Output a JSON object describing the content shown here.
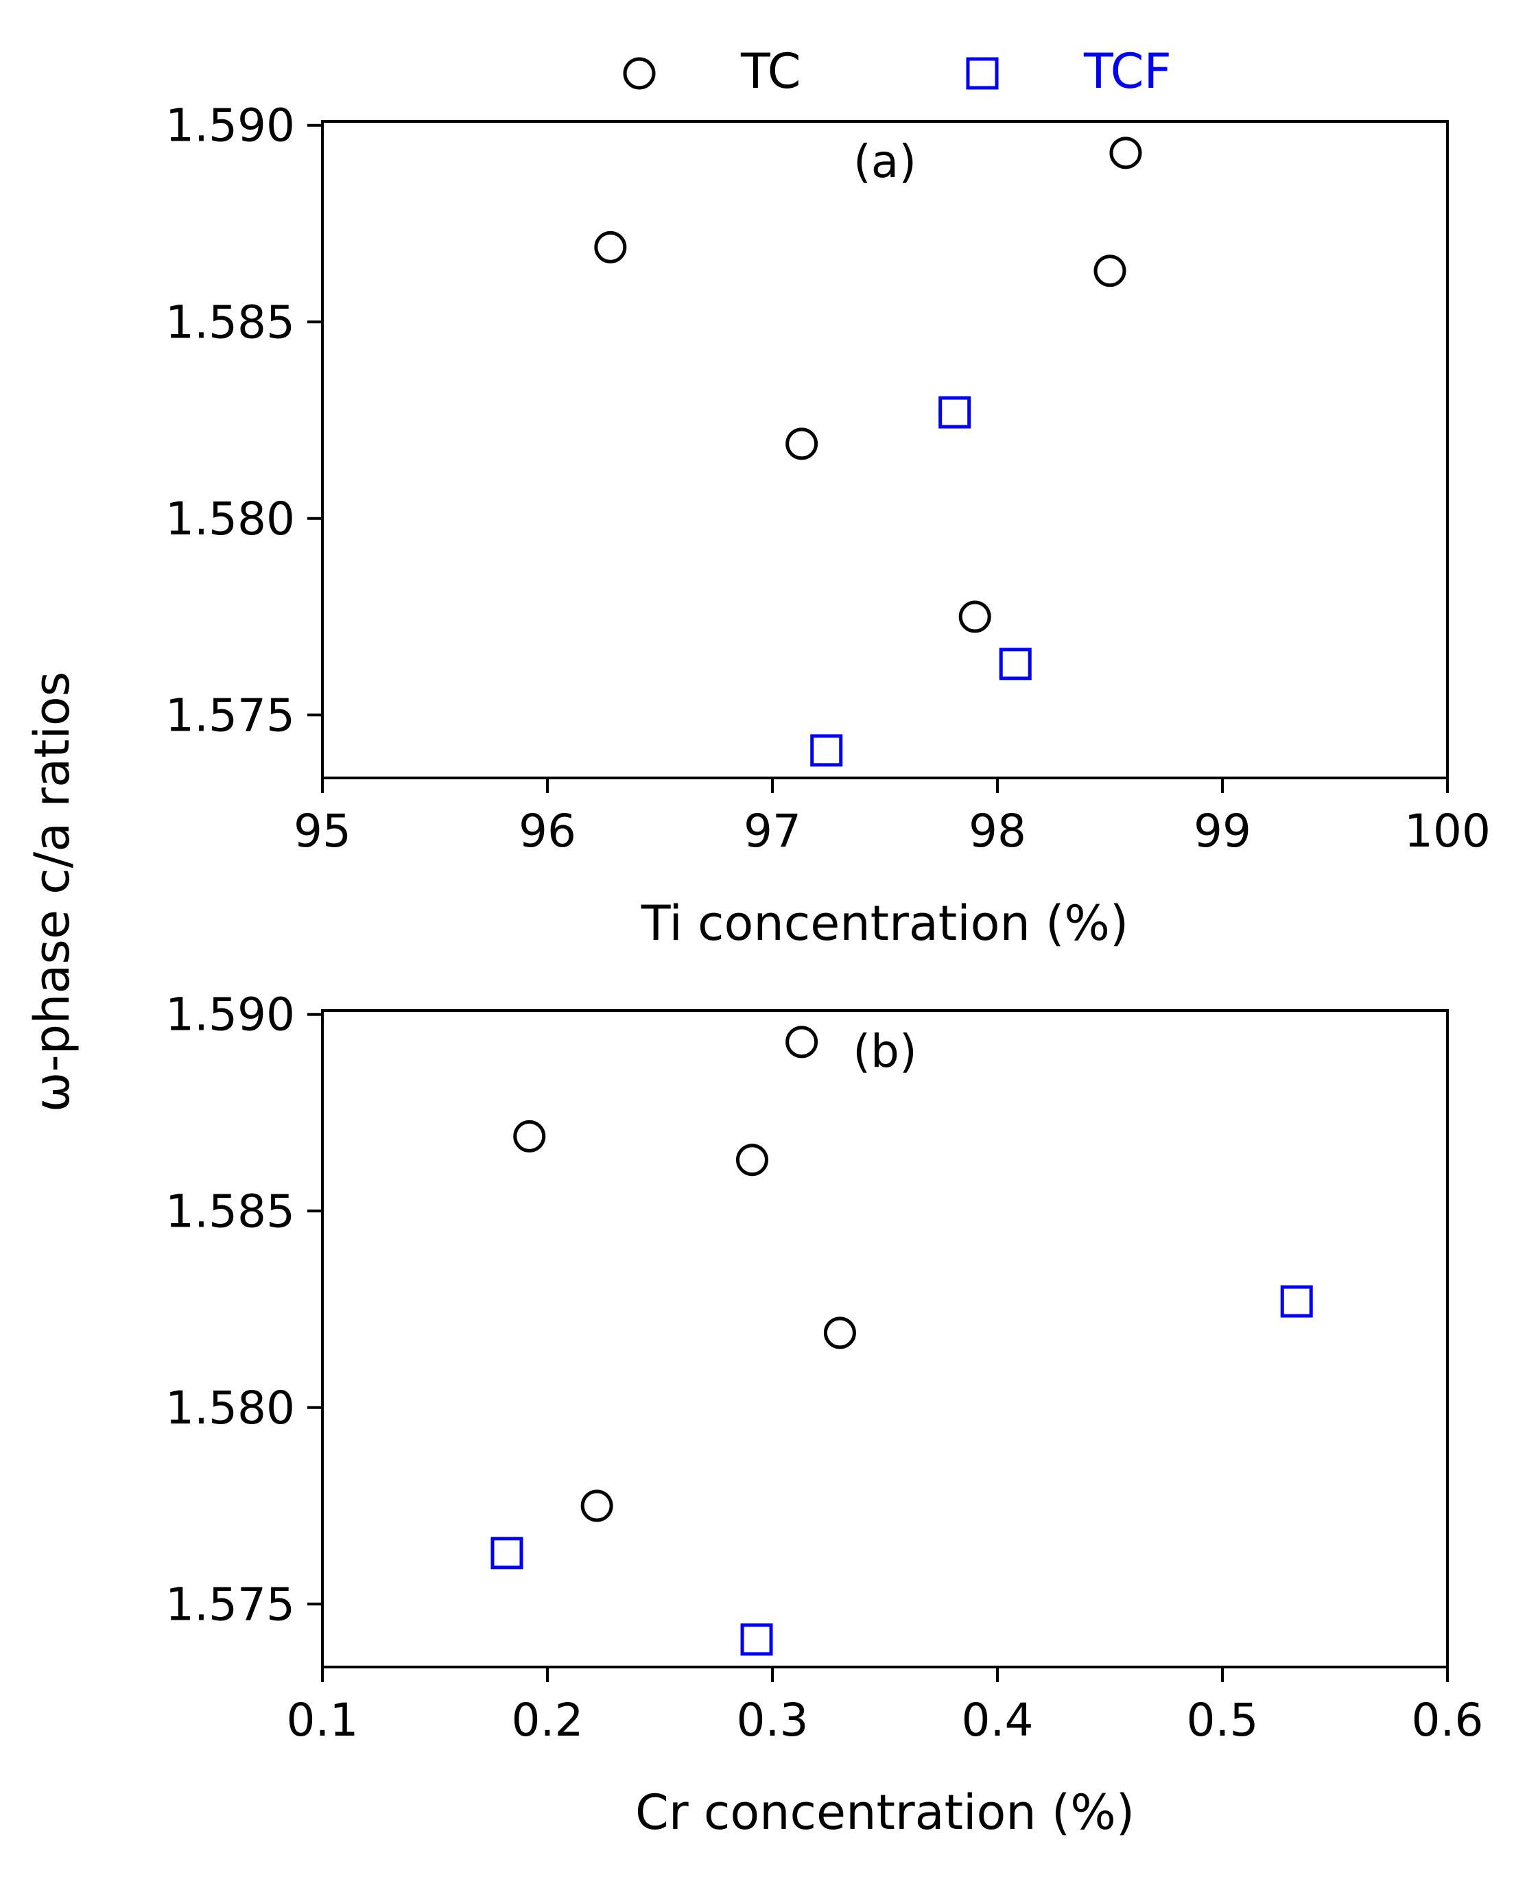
{
  "legend": {
    "entries": [
      {
        "label": "TC",
        "marker": "circle",
        "color": "#000000"
      },
      {
        "label": "TCF",
        "marker": "square",
        "color": "#0000ff"
      }
    ],
    "placement": "top-center"
  },
  "shared_ylabel": "ω-phase c/a ratios",
  "chart_data": [
    {
      "type": "scatter",
      "panel_label": "(a)",
      "xlabel": "Ti concentration (%)",
      "ylabel": "ω-phase c/a ratios",
      "xlim": [
        95,
        100
      ],
      "ylim": [
        1.5734,
        1.5901
      ],
      "x_tick_labels": [
        "95",
        "96",
        "97",
        "98",
        "99",
        "100"
      ],
      "y_tick_labels": [
        "1.575",
        "1.580",
        "1.585",
        "1.590"
      ],
      "x_ticks": [
        95,
        96,
        97,
        98,
        99,
        100
      ],
      "y_ticks": [
        1.575,
        1.58,
        1.585,
        1.59
      ],
      "grid": false,
      "series": [
        {
          "name": "TC",
          "marker": "circle",
          "color": "#000000",
          "points": [
            [
              96.28,
              1.5869
            ],
            [
              97.13,
              1.5819
            ],
            [
              97.9,
              1.5775
            ],
            [
              98.5,
              1.5863
            ],
            [
              98.57,
              1.5893
            ]
          ]
        },
        {
          "name": "TCF",
          "marker": "square",
          "color": "#0000ff",
          "points": [
            [
              97.24,
              1.5741
            ],
            [
              97.81,
              1.5827
            ],
            [
              98.08,
              1.5763
            ]
          ]
        }
      ]
    },
    {
      "type": "scatter",
      "panel_label": "(b)",
      "xlabel": "Cr concentration (%)",
      "ylabel": "ω-phase c/a ratios",
      "xlim": [
        0.1,
        0.6
      ],
      "ylim": [
        1.5734,
        1.5901
      ],
      "x_tick_labels": [
        "0.1",
        "0.2",
        "0.3",
        "0.4",
        "0.5",
        "0.6"
      ],
      "y_tick_labels": [
        "1.575",
        "1.580",
        "1.585",
        "1.590"
      ],
      "x_ticks": [
        0.1,
        0.2,
        0.3,
        0.4,
        0.5,
        0.6
      ],
      "y_ticks": [
        1.575,
        1.58,
        1.585,
        1.59
      ],
      "grid": false,
      "series": [
        {
          "name": "TC",
          "marker": "circle",
          "color": "#000000",
          "points": [
            [
              0.192,
              1.5869
            ],
            [
              0.222,
              1.5775
            ],
            [
              0.291,
              1.5863
            ],
            [
              0.313,
              1.5893
            ],
            [
              0.33,
              1.5819
            ]
          ]
        },
        {
          "name": "TCF",
          "marker": "square",
          "color": "#0000ff",
          "points": [
            [
              0.182,
              1.5763
            ],
            [
              0.293,
              1.5741
            ],
            [
              0.533,
              1.5827
            ]
          ]
        }
      ]
    }
  ]
}
